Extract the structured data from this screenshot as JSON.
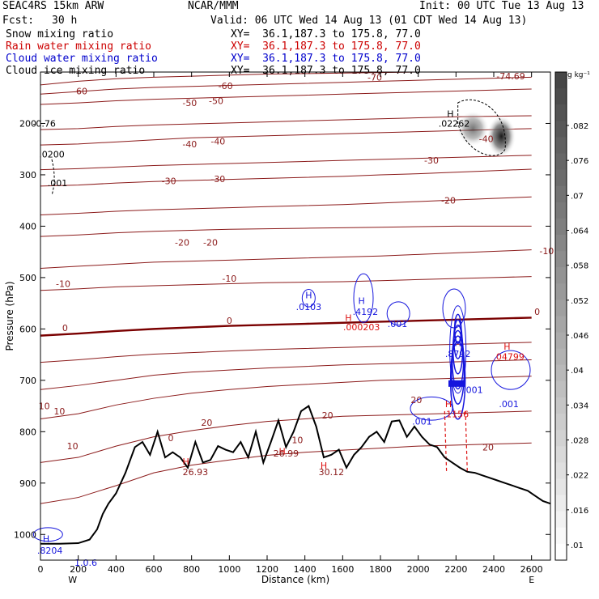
{
  "header": {
    "model": "SEAC4RS 15km ARW",
    "org": "NCAR/MMM",
    "init": "Init: 00 UTC Tue 13 Aug 13",
    "fcst_label": "Fcst:",
    "fcst_value": "30 h",
    "valid": "Valid: 06 UTC Wed 14 Aug 13 (01 CDT Wed 14 Aug 13)"
  },
  "legend": [
    {
      "name": "Snow mixing ratio",
      "xy": "XY=  36.1,187.3 to 175.8, 77.0",
      "color": "#000000"
    },
    {
      "name": "Rain water mixing ratio",
      "xy": "XY=  36.1,187.3 to 175.8, 77.0",
      "color": "#cc0000"
    },
    {
      "name": "Cloud water mixing ratio",
      "xy": "XY=  36.1,187.3 to 175.8, 77.0",
      "color": "#0000cc"
    },
    {
      "name": "Cloud ice mixing ratio",
      "xy": "XY=  36.1,187.3 to 175.8, 77.0",
      "color": "#000000"
    }
  ],
  "chart_data": {
    "type": "contour",
    "xlabel": "Distance (km)",
    "ylabel": "Pressure (hPa)",
    "xlim": [
      0,
      2700
    ],
    "ylim": [
      1050,
      100
    ],
    "x_ticks": [
      0,
      200,
      400,
      600,
      800,
      1000,
      1200,
      1400,
      1600,
      1800,
      2000,
      2200,
      2400,
      2600
    ],
    "y_ticks": [
      200,
      300,
      400,
      500,
      600,
      700,
      800,
      900,
      1000
    ],
    "x_dir_left": "W",
    "x_dir_right": "E",
    "colorbar": {
      "unit": "g kg⁻¹",
      "ticks": [
        ".082",
        ".076",
        ".07",
        ".064",
        ".058",
        ".052",
        ".046",
        ".04",
        ".034",
        ".028",
        ".022",
        ".016",
        ".01"
      ]
    },
    "colors": {
      "temp": "#8b1a1a",
      "zero": "#7a0000",
      "cloud_water": "#1515dd",
      "rain": "#dd1111",
      "terrain": "#000000"
    },
    "temperature_isotherms": [
      {
        "t": -70,
        "p": [
          125,
          118,
          113,
          110,
          108,
          106,
          104,
          103,
          102,
          101,
          100,
          100,
          100,
          100
        ]
      },
      {
        "t": -60,
        "p": [
          143,
          138,
          133,
          130,
          128,
          126,
          124,
          122,
          120,
          118,
          116,
          114,
          112,
          110
        ]
      },
      {
        "t": -50,
        "p": [
          163,
          160,
          156,
          153,
          151,
          149,
          147,
          145,
          143,
          141,
          139,
          137,
          135,
          133
        ]
      },
      {
        "t": -40,
        "p": [
          212,
          210,
          206,
          203,
          201,
          199,
          197,
          195,
          193,
          191,
          189,
          187,
          186,
          185
        ]
      },
      {
        "t": -40,
        "p": [
          242,
          240,
          236,
          232,
          228,
          226,
          224,
          222,
          220,
          218,
          216,
          214,
          212,
          210
        ]
      },
      {
        "t": -30,
        "p": [
          290,
          288,
          285,
          282,
          280,
          278,
          276,
          274,
          272,
          270,
          268,
          266,
          264,
          262
        ]
      },
      {
        "t": -30,
        "p": [
          322,
          320,
          316,
          313,
          311,
          309,
          307,
          305,
          303,
          300,
          298,
          295,
          292,
          289
        ]
      },
      {
        "t": -20,
        "p": [
          378,
          375,
          371,
          368,
          366,
          364,
          362,
          360,
          358,
          355,
          352,
          349,
          346,
          343
        ]
      },
      {
        "t": -20,
        "p": [
          420,
          417,
          413,
          410,
          408,
          406,
          405,
          404,
          403,
          402,
          401,
          400,
          400,
          400
        ]
      },
      {
        "t": -10,
        "p": [
          482,
          478,
          474,
          470,
          468,
          466,
          464,
          462,
          460,
          458,
          455,
          452,
          449,
          446
        ]
      },
      {
        "t": -10,
        "p": [
          525,
          522,
          518,
          516,
          514,
          512,
          510,
          509,
          508,
          506,
          504,
          502,
          500,
          498
        ]
      },
      {
        "t": 0,
        "p": [
          613,
          609,
          604,
          600,
          597,
          594,
          592,
          590,
          588,
          586,
          584,
          582,
          580,
          578
        ]
      },
      {
        "t": 10,
        "p": [
          665,
          660,
          654,
          649,
          646,
          643,
          640,
          638,
          636,
          634,
          632,
          630,
          628,
          626
        ]
      },
      {
        "t": 10,
        "p": [
          718,
          710,
          700,
          690,
          684,
          680,
          676,
          673,
          670,
          668,
          666,
          664,
          662,
          660
        ]
      },
      {
        "t": 10,
        "p": [
          775,
          765,
          748,
          735,
          725,
          718,
          712,
          708,
          704,
          700,
          698,
          696,
          694,
          692
        ]
      },
      {
        "t": 20,
        "p": [
          860,
          850,
          828,
          810,
          798,
          788,
          780,
          775,
          770,
          768,
          766,
          764,
          762,
          760
        ]
      },
      {
        "t": 20,
        "p": [
          940,
          928,
          905,
          880,
          865,
          855,
          846,
          840,
          836,
          832,
          828,
          826,
          824,
          822
        ]
      }
    ],
    "contour_labels": [
      {
        "text": "-70",
        "x": 1770,
        "p": 110
      },
      {
        "text": "-74.69",
        "x": 2490,
        "p": 108
      },
      {
        "text": "-60",
        "x": 210,
        "p": 137
      },
      {
        "text": "-60",
        "x": 980,
        "p": 127
      },
      {
        "text": "-50",
        "x": 790,
        "p": 160
      },
      {
        "text": "-50",
        "x": 930,
        "p": 156
      },
      {
        "text": "-40",
        "x": 790,
        "p": 240
      },
      {
        "text": "-40",
        "x": 940,
        "p": 235
      },
      {
        "text": "-40",
        "x": 2360,
        "p": 230
      },
      {
        "text": "-30",
        "x": 680,
        "p": 312
      },
      {
        "text": "-30",
        "x": 940,
        "p": 308
      },
      {
        "text": "-30",
        "x": 2070,
        "p": 272
      },
      {
        "text": "-20",
        "x": 750,
        "p": 432
      },
      {
        "text": "-20",
        "x": 900,
        "p": 432
      },
      {
        "text": "-20",
        "x": 2160,
        "p": 350
      },
      {
        "text": "-10",
        "x": 120,
        "p": 512
      },
      {
        "text": "-10",
        "x": 1000,
        "p": 502
      },
      {
        "text": "-10",
        "x": 2680,
        "p": 448
      },
      {
        "text": "0",
        "x": 130,
        "p": 598
      },
      {
        "text": "0",
        "x": 1000,
        "p": 584
      },
      {
        "text": "0",
        "x": 2630,
        "p": 566
      },
      {
        "text": "10",
        "x": 20,
        "p": 750
      },
      {
        "text": "10",
        "x": 100,
        "p": 760
      },
      {
        "text": "10",
        "x": 170,
        "p": 828
      },
      {
        "text": "20",
        "x": 880,
        "p": 782
      },
      {
        "text": "20",
        "x": 1520,
        "p": 768
      },
      {
        "text": "20",
        "x": 1990,
        "p": 738
      },
      {
        "text": "20",
        "x": 2370,
        "p": 830
      },
      {
        "text": "0",
        "x": 690,
        "p": 812
      },
      {
        "text": "10",
        "x": 1360,
        "p": 816
      }
    ],
    "cloud_water_labels": [
      {
        "text": "H",
        "x": 1420,
        "p": 534
      },
      {
        "text": ".0103",
        "x": 1420,
        "p": 557
      },
      {
        "text": "H",
        "x": 1700,
        "p": 545
      },
      {
        "text": ".4192",
        "x": 1720,
        "p": 566
      },
      {
        "text": ".001",
        "x": 1890,
        "p": 590
      },
      {
        "text": "H",
        "x": 2210,
        "p": 627
      },
      {
        "text": ".8792",
        "x": 2210,
        "p": 648
      },
      {
        "text": ".001",
        "x": 2290,
        "p": 718
      },
      {
        "text": ".001",
        "x": 2480,
        "p": 746
      },
      {
        "text": ".001",
        "x": 2020,
        "p": 780
      },
      {
        "text": "H",
        "x": 30,
        "p": 1008
      },
      {
        "text": ".8204",
        "x": 50,
        "p": 1031
      },
      {
        "text": "1.0.6",
        "x": 240,
        "p": 1055
      }
    ],
    "rain_labels": [
      {
        "text": "H",
        "x": 1630,
        "p": 578
      },
      {
        "text": ".000203",
        "x": 1700,
        "p": 596
      },
      {
        "text": "H",
        "x": 2470,
        "p": 634
      },
      {
        "text": ".04799",
        "x": 2480,
        "p": 654
      },
      {
        "text": "H",
        "x": 2160,
        "p": 746
      },
      {
        "text": ".1156",
        "x": 2200,
        "p": 766
      },
      {
        "text": "H",
        "x": 770,
        "p": 858
      },
      {
        "text": "H",
        "x": 1280,
        "p": 838
      },
      {
        "text": "H",
        "x": 1500,
        "p": 866
      }
    ],
    "snow_labels": [
      {
        "text": "H",
        "x": 2170,
        "p": 181
      },
      {
        "text": ".02262",
        "x": 2190,
        "p": 200
      },
      {
        "text": "-0.76",
        "x": 20,
        "p": 200
      },
      {
        "text": ".0200",
        "x": 60,
        "p": 260
      },
      {
        "text": ".001",
        "x": 90,
        "p": 316
      }
    ],
    "terrain_labels": [
      {
        "text": "26.93",
        "x": 820,
        "p": 878
      },
      {
        "text": "26.99",
        "x": 1300,
        "p": 842
      },
      {
        "text": "30.12",
        "x": 1540,
        "p": 878
      }
    ],
    "terrain": {
      "x": [
        0,
        100,
        200,
        260,
        300,
        330,
        360,
        400,
        450,
        500,
        540,
        580,
        620,
        660,
        700,
        740,
        780,
        820,
        860,
        900,
        940,
        980,
        1020,
        1060,
        1100,
        1140,
        1180,
        1220,
        1260,
        1300,
        1340,
        1380,
        1420,
        1460,
        1500,
        1540,
        1580,
        1620,
        1660,
        1700,
        1740,
        1780,
        1820,
        1860,
        1900,
        1940,
        1980,
        2020,
        2060,
        2100,
        2140,
        2180,
        2220,
        2260,
        2300,
        2340,
        2380,
        2420,
        2460,
        2500,
        2540,
        2580,
        2620,
        2660,
        2700
      ],
      "p": [
        1018,
        1018,
        1017,
        1010,
        990,
        960,
        940,
        920,
        880,
        830,
        820,
        845,
        800,
        850,
        840,
        850,
        870,
        820,
        860,
        855,
        828,
        835,
        840,
        820,
        850,
        800,
        860,
        820,
        778,
        830,
        800,
        760,
        750,
        790,
        850,
        845,
        835,
        870,
        845,
        830,
        810,
        800,
        820,
        780,
        778,
        810,
        790,
        810,
        825,
        830,
        850,
        860,
        870,
        878,
        880,
        885,
        890,
        895,
        900,
        905,
        910,
        915,
        925,
        935,
        940
      ]
    }
  }
}
